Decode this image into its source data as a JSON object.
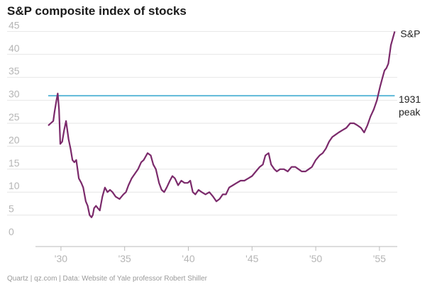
{
  "header": {
    "title": "S&P composite index of stocks"
  },
  "footer": {
    "credit": "Quartz | qz.com | Data: Website of Yale professor Robert Shiller"
  },
  "colors": {
    "sp_line": "#7b2a6b",
    "peak_line": "#5fb9d8",
    "grid": "#e6e6e6",
    "tick_text": "#b5b5b5"
  },
  "chart_data": {
    "type": "line",
    "title": "S&P composite index of stocks",
    "xlabel": "",
    "ylabel": "",
    "xlim": [
      1928.0,
      1956.4
    ],
    "ylim": [
      0,
      46
    ],
    "grid": true,
    "y_ticks": [
      0,
      5,
      10,
      15,
      20,
      25,
      30,
      35,
      40,
      45
    ],
    "x_ticks": [
      {
        "value": 1930,
        "label": "'30"
      },
      {
        "value": 1935,
        "label": "'35"
      },
      {
        "value": 1940,
        "label": "'40"
      },
      {
        "value": 1945,
        "label": "'45"
      },
      {
        "value": 1950,
        "label": "'50"
      },
      {
        "value": 1955,
        "label": "'55"
      }
    ],
    "series": [
      {
        "name": "S&P",
        "x": [
          1929.0,
          1929.2,
          1929.4,
          1929.5,
          1929.65,
          1929.75,
          1929.85,
          1929.95,
          1930.1,
          1930.25,
          1930.4,
          1930.6,
          1930.75,
          1930.9,
          1931.05,
          1931.2,
          1931.4,
          1931.6,
          1931.75,
          1931.95,
          1932.1,
          1932.25,
          1932.4,
          1932.5,
          1932.6,
          1932.75,
          1932.9,
          1933.05,
          1933.25,
          1933.45,
          1933.65,
          1933.85,
          1934.05,
          1934.3,
          1934.6,
          1934.9,
          1935.1,
          1935.3,
          1935.55,
          1935.8,
          1936.05,
          1936.3,
          1936.5,
          1936.8,
          1937.05,
          1937.25,
          1937.45,
          1937.7,
          1937.9,
          1938.1,
          1938.3,
          1938.55,
          1938.75,
          1938.95,
          1939.2,
          1939.45,
          1939.7,
          1939.95,
          1940.15,
          1940.35,
          1940.55,
          1940.8,
          1941.05,
          1941.35,
          1941.65,
          1941.95,
          1942.2,
          1942.45,
          1942.7,
          1942.95,
          1943.2,
          1943.5,
          1943.8,
          1944.1,
          1944.4,
          1944.7,
          1945.0,
          1945.3,
          1945.6,
          1945.85,
          1946.05,
          1946.3,
          1946.5,
          1946.75,
          1946.95,
          1947.2,
          1947.5,
          1947.8,
          1948.1,
          1948.4,
          1948.65,
          1948.9,
          1949.2,
          1949.45,
          1949.7,
          1950.0,
          1950.3,
          1950.55,
          1950.8,
          1951.05,
          1951.3,
          1951.55,
          1951.8,
          1952.1,
          1952.4,
          1952.7,
          1953.0,
          1953.3,
          1953.55,
          1953.8,
          1954.05,
          1954.3,
          1954.55,
          1954.8,
          1955.05,
          1955.25,
          1955.4,
          1955.55,
          1955.7,
          1955.8,
          1955.9,
          1956.05,
          1956.2
        ],
        "y": [
          24.5,
          25.0,
          25.5,
          27.5,
          30.0,
          31.5,
          28.0,
          20.5,
          21.0,
          23.5,
          25.5,
          21.5,
          19.5,
          17.0,
          16.5,
          17.0,
          13.0,
          12.0,
          11.0,
          8.0,
          7.0,
          5.0,
          4.5,
          5.0,
          6.5,
          7.0,
          6.5,
          6.0,
          9.0,
          11.0,
          10.0,
          10.5,
          10.0,
          9.0,
          8.5,
          9.5,
          10.0,
          11.5,
          13.0,
          14.0,
          15.0,
          16.5,
          17.0,
          18.5,
          18.0,
          16.0,
          15.0,
          12.0,
          10.5,
          10.0,
          11.0,
          12.5,
          13.5,
          13.0,
          11.5,
          12.5,
          12.0,
          12.0,
          12.5,
          10.0,
          9.5,
          10.5,
          10.0,
          9.5,
          10.0,
          9.0,
          8.0,
          8.5,
          9.5,
          9.5,
          11.0,
          11.5,
          12.0,
          12.5,
          12.5,
          13.0,
          13.5,
          14.5,
          15.5,
          16.0,
          18.0,
          18.5,
          16.0,
          15.0,
          14.5,
          15.0,
          15.0,
          14.5,
          15.5,
          15.5,
          15.0,
          14.5,
          14.5,
          15.0,
          15.5,
          17.0,
          18.0,
          18.5,
          19.5,
          21.0,
          22.0,
          22.5,
          23.0,
          23.5,
          24.0,
          25.0,
          25.0,
          24.5,
          24.0,
          23.0,
          24.5,
          26.5,
          28.0,
          30.0,
          33.0,
          35.0,
          36.5,
          37.0,
          38.0,
          40.0,
          42.0,
          43.5,
          45.0
        ]
      },
      {
        "name": "1931 peak",
        "x": [
          1929.0,
          1956.2
        ],
        "y": [
          31.0,
          31.0
        ]
      }
    ],
    "annotations": [
      {
        "text": "S&P"
      },
      {
        "text": "1931"
      },
      {
        "text": "peak"
      }
    ]
  }
}
